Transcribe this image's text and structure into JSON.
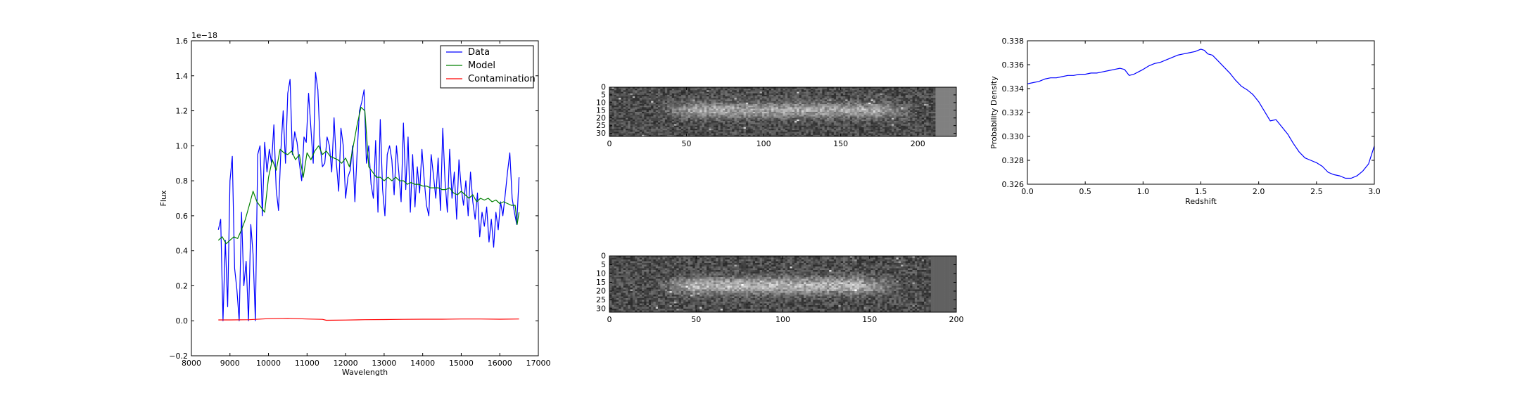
{
  "chart_data": [
    {
      "type": "line",
      "xlabel": "Wavelength",
      "ylabel": "Flux",
      "offset_text": "1e−18",
      "xlim": [
        8000,
        17000
      ],
      "ylim": [
        -0.2,
        1.6
      ],
      "xticks": [
        8000,
        9000,
        10000,
        11000,
        12000,
        13000,
        14000,
        15000,
        16000,
        17000
      ],
      "yticks": [
        -0.2,
        0.0,
        0.2,
        0.4,
        0.6,
        0.8,
        1.0,
        1.2,
        1.4,
        1.6
      ],
      "xtick_labels": [
        "8000",
        "9000",
        "10000",
        "11000",
        "12000",
        "13000",
        "14000",
        "15000",
        "16000",
        "17000"
      ],
      "ytick_labels": [
        "−0.2",
        "0.0",
        "0.2",
        "0.4",
        "0.6",
        "0.8",
        "1.0",
        "1.2",
        "1.4",
        "1.6"
      ],
      "legend_position": "top-right",
      "series": [
        {
          "name": "Data",
          "color": "#0000ff",
          "x": [
            8700,
            8760,
            8820,
            8880,
            8940,
            9000,
            9060,
            9120,
            9180,
            9240,
            9300,
            9360,
            9420,
            9480,
            9540,
            9600,
            9660,
            9720,
            9780,
            9840,
            9900,
            9960,
            10020,
            10080,
            10140,
            10200,
            10260,
            10320,
            10380,
            10440,
            10500,
            10560,
            10620,
            10680,
            10740,
            10800,
            10860,
            10920,
            10980,
            11040,
            11100,
            11160,
            11220,
            11280,
            11340,
            11400,
            11460,
            11520,
            11580,
            11640,
            11700,
            11760,
            11820,
            11880,
            11940,
            12000,
            12060,
            12120,
            12180,
            12240,
            12300,
            12360,
            12420,
            12480,
            12540,
            12600,
            12660,
            12720,
            12780,
            12840,
            12900,
            12960,
            13020,
            13080,
            13140,
            13200,
            13260,
            13320,
            13380,
            13440,
            13500,
            13560,
            13620,
            13680,
            13740,
            13800,
            13860,
            13920,
            13980,
            14040,
            14100,
            14160,
            14220,
            14280,
            14340,
            14400,
            14460,
            14520,
            14580,
            14640,
            14700,
            14760,
            14820,
            14880,
            14940,
            15000,
            15060,
            15120,
            15180,
            15240,
            15300,
            15360,
            15420,
            15480,
            15540,
            15600,
            15660,
            15720,
            15780,
            15840,
            15900,
            15960,
            16020,
            16080,
            16140,
            16200,
            16260,
            16320,
            16380,
            16440,
            16500
          ],
          "y": [
            0.52,
            0.58,
            0.0,
            0.46,
            0.08,
            0.8,
            0.94,
            0.3,
            0.18,
            0.0,
            0.62,
            0.2,
            0.34,
            0.0,
            0.55,
            0.38,
            0.0,
            0.95,
            1.0,
            0.6,
            1.02,
            0.85,
            0.98,
            0.9,
            1.12,
            0.75,
            0.63,
            0.97,
            1.2,
            0.9,
            1.3,
            1.38,
            0.95,
            1.08,
            1.02,
            0.9,
            0.8,
            1.05,
            1.02,
            1.3,
            1.1,
            0.9,
            1.42,
            1.32,
            1.0,
            0.88,
            0.9,
            1.05,
            1.0,
            0.85,
            1.16,
            0.9,
            0.74,
            1.1,
            1.0,
            0.7,
            0.82,
            0.86,
            1.0,
            0.68,
            0.96,
            1.2,
            1.25,
            1.32,
            0.9,
            1.0,
            0.78,
            0.7,
            1.03,
            0.62,
            1.15,
            0.75,
            0.6,
            0.95,
            1.0,
            0.92,
            0.72,
            1.0,
            0.85,
            0.68,
            1.13,
            0.75,
            1.05,
            0.62,
            0.95,
            0.65,
            0.88,
            0.73,
            0.98,
            0.8,
            0.66,
            0.6,
            0.95,
            0.83,
            0.7,
            0.93,
            0.63,
            1.1,
            0.8,
            0.62,
            0.98,
            0.7,
            0.85,
            0.58,
            0.92,
            0.76,
            0.66,
            0.8,
            0.6,
            0.85,
            0.68,
            0.58,
            0.73,
            0.48,
            0.62,
            0.54,
            0.65,
            0.45,
            0.58,
            0.42,
            0.62,
            0.52,
            0.68,
            0.6,
            0.72,
            0.85,
            0.96,
            0.7,
            0.62,
            0.55,
            0.82
          ],
          "notes": ""
        },
        {
          "name": "Model",
          "color": "#008000",
          "x": [
            8700,
            8800,
            8900,
            9000,
            9100,
            9200,
            9300,
            9400,
            9500,
            9600,
            9700,
            9800,
            9900,
            10000,
            10100,
            10200,
            10300,
            10400,
            10500,
            10600,
            10700,
            10800,
            10900,
            11000,
            11100,
            11200,
            11300,
            11400,
            11500,
            11600,
            11700,
            11800,
            11900,
            12000,
            12100,
            12200,
            12300,
            12400,
            12500,
            12600,
            12700,
            12800,
            12900,
            13000,
            13100,
            13200,
            13300,
            13400,
            13500,
            13600,
            13700,
            13800,
            13900,
            14000,
            14100,
            14200,
            14300,
            14400,
            14500,
            14600,
            14700,
            14800,
            14900,
            15000,
            15100,
            15200,
            15300,
            15400,
            15500,
            15600,
            15700,
            15800,
            15900,
            16000,
            16100,
            16200,
            16300,
            16400,
            16450,
            16500
          ],
          "y": [
            0.46,
            0.48,
            0.44,
            0.46,
            0.48,
            0.47,
            0.52,
            0.58,
            0.66,
            0.74,
            0.68,
            0.65,
            0.62,
            0.82,
            0.92,
            0.86,
            0.98,
            0.96,
            0.95,
            0.97,
            0.92,
            0.95,
            0.82,
            0.96,
            0.92,
            0.97,
            1.0,
            0.95,
            0.97,
            0.94,
            0.93,
            0.92,
            0.9,
            0.93,
            0.88,
            1.0,
            1.12,
            1.22,
            1.2,
            0.88,
            0.85,
            0.82,
            0.82,
            0.8,
            0.82,
            0.8,
            0.82,
            0.8,
            0.8,
            0.78,
            0.79,
            0.78,
            0.78,
            0.77,
            0.77,
            0.76,
            0.76,
            0.76,
            0.75,
            0.75,
            0.76,
            0.73,
            0.72,
            0.74,
            0.72,
            0.7,
            0.72,
            0.68,
            0.7,
            0.69,
            0.7,
            0.68,
            0.69,
            0.67,
            0.68,
            0.67,
            0.66,
            0.66,
            0.55,
            0.62
          ]
        },
        {
          "name": "Contamination",
          "color": "#ff0000",
          "x": [
            8700,
            9000,
            9500,
            10000,
            10500,
            11000,
            11400,
            11500,
            12000,
            12500,
            13000,
            13500,
            14000,
            14500,
            15000,
            15500,
            16000,
            16500
          ],
          "y": [
            0.005,
            0.005,
            0.006,
            0.012,
            0.014,
            0.01,
            0.008,
            0.003,
            0.004,
            0.006,
            0.007,
            0.008,
            0.009,
            0.009,
            0.01,
            0.01,
            0.009,
            0.01
          ]
        }
      ]
    },
    {
      "type": "heatmap",
      "xlim": [
        0,
        225
      ],
      "ylim": [
        32,
        0
      ],
      "xticks": [
        0,
        50,
        100,
        150,
        200
      ],
      "yticks": [
        0,
        5,
        10,
        15,
        20,
        25,
        30
      ],
      "xtick_labels": [
        "0",
        "50",
        "100",
        "150",
        "200"
      ],
      "ytick_labels": [
        "0",
        "5",
        "10",
        "15",
        "20",
        "25",
        "30"
      ],
      "colormap": "gray",
      "source_trace": {
        "x_range": [
          30,
          200
        ],
        "center_row": 15,
        "brightness": 0.7
      },
      "right_band": {
        "x_from": 212,
        "x_to": 225,
        "value": 0.5
      }
    },
    {
      "type": "heatmap",
      "xlim": [
        0,
        200
      ],
      "ylim": [
        32,
        0
      ],
      "xticks": [
        0,
        50,
        100,
        150,
        200
      ],
      "yticks": [
        0,
        5,
        10,
        15,
        20,
        25,
        30
      ],
      "xtick_labels": [
        "0",
        "50",
        "100",
        "150",
        "200"
      ],
      "ytick_labels": [
        "0",
        "5",
        "10",
        "15",
        "20",
        "25",
        "30"
      ],
      "colormap": "gray",
      "source_trace": {
        "x_range": [
          25,
          170
        ],
        "center_row": 17,
        "brightness": 0.75
      },
      "right_band": {
        "x_from": 185,
        "x_to": 200,
        "value": 0.38
      }
    },
    {
      "type": "line",
      "xlabel": "Redshift",
      "ylabel": "Probability Density",
      "xlim": [
        0.0,
        3.0
      ],
      "ylim": [
        0.326,
        0.338
      ],
      "xticks": [
        0.0,
        0.5,
        1.0,
        1.5,
        2.0,
        2.5,
        3.0
      ],
      "yticks": [
        0.326,
        0.328,
        0.33,
        0.332,
        0.334,
        0.336,
        0.338
      ],
      "xtick_labels": [
        "0.0",
        "0.5",
        "1.0",
        "1.5",
        "2.0",
        "2.5",
        "3.0"
      ],
      "ytick_labels": [
        "0.326",
        "0.328",
        "0.330",
        "0.332",
        "0.334",
        "0.336",
        "0.338"
      ],
      "series": [
        {
          "color": "#0000ff",
          "x": [
            0.0,
            0.05,
            0.1,
            0.15,
            0.2,
            0.25,
            0.3,
            0.35,
            0.4,
            0.45,
            0.5,
            0.55,
            0.6,
            0.65,
            0.7,
            0.75,
            0.8,
            0.84,
            0.88,
            0.92,
            0.96,
            1.0,
            1.05,
            1.1,
            1.15,
            1.2,
            1.25,
            1.3,
            1.35,
            1.4,
            1.45,
            1.5,
            1.53,
            1.56,
            1.6,
            1.65,
            1.7,
            1.75,
            1.8,
            1.85,
            1.9,
            1.95,
            2.0,
            2.05,
            2.1,
            2.15,
            2.2,
            2.25,
            2.3,
            2.35,
            2.4,
            2.45,
            2.5,
            2.55,
            2.6,
            2.65,
            2.7,
            2.75,
            2.8,
            2.85,
            2.9,
            2.95,
            3.0
          ],
          "y": [
            0.3344,
            0.3345,
            0.3346,
            0.3348,
            0.3349,
            0.3349,
            0.335,
            0.3351,
            0.3351,
            0.3352,
            0.3352,
            0.3353,
            0.3353,
            0.3354,
            0.3355,
            0.3356,
            0.3357,
            0.3356,
            0.3351,
            0.3352,
            0.3354,
            0.3356,
            0.3359,
            0.3361,
            0.3362,
            0.3364,
            0.3366,
            0.3368,
            0.3369,
            0.337,
            0.3371,
            0.3373,
            0.3372,
            0.3369,
            0.3368,
            0.3363,
            0.3358,
            0.3353,
            0.3347,
            0.3342,
            0.3339,
            0.3335,
            0.3329,
            0.3321,
            0.3313,
            0.3314,
            0.3308,
            0.3302,
            0.3294,
            0.3287,
            0.3282,
            0.328,
            0.3278,
            0.3275,
            0.327,
            0.3268,
            0.3267,
            0.3265,
            0.3265,
            0.3267,
            0.3271,
            0.3277,
            0.3292
          ]
        }
      ]
    }
  ]
}
